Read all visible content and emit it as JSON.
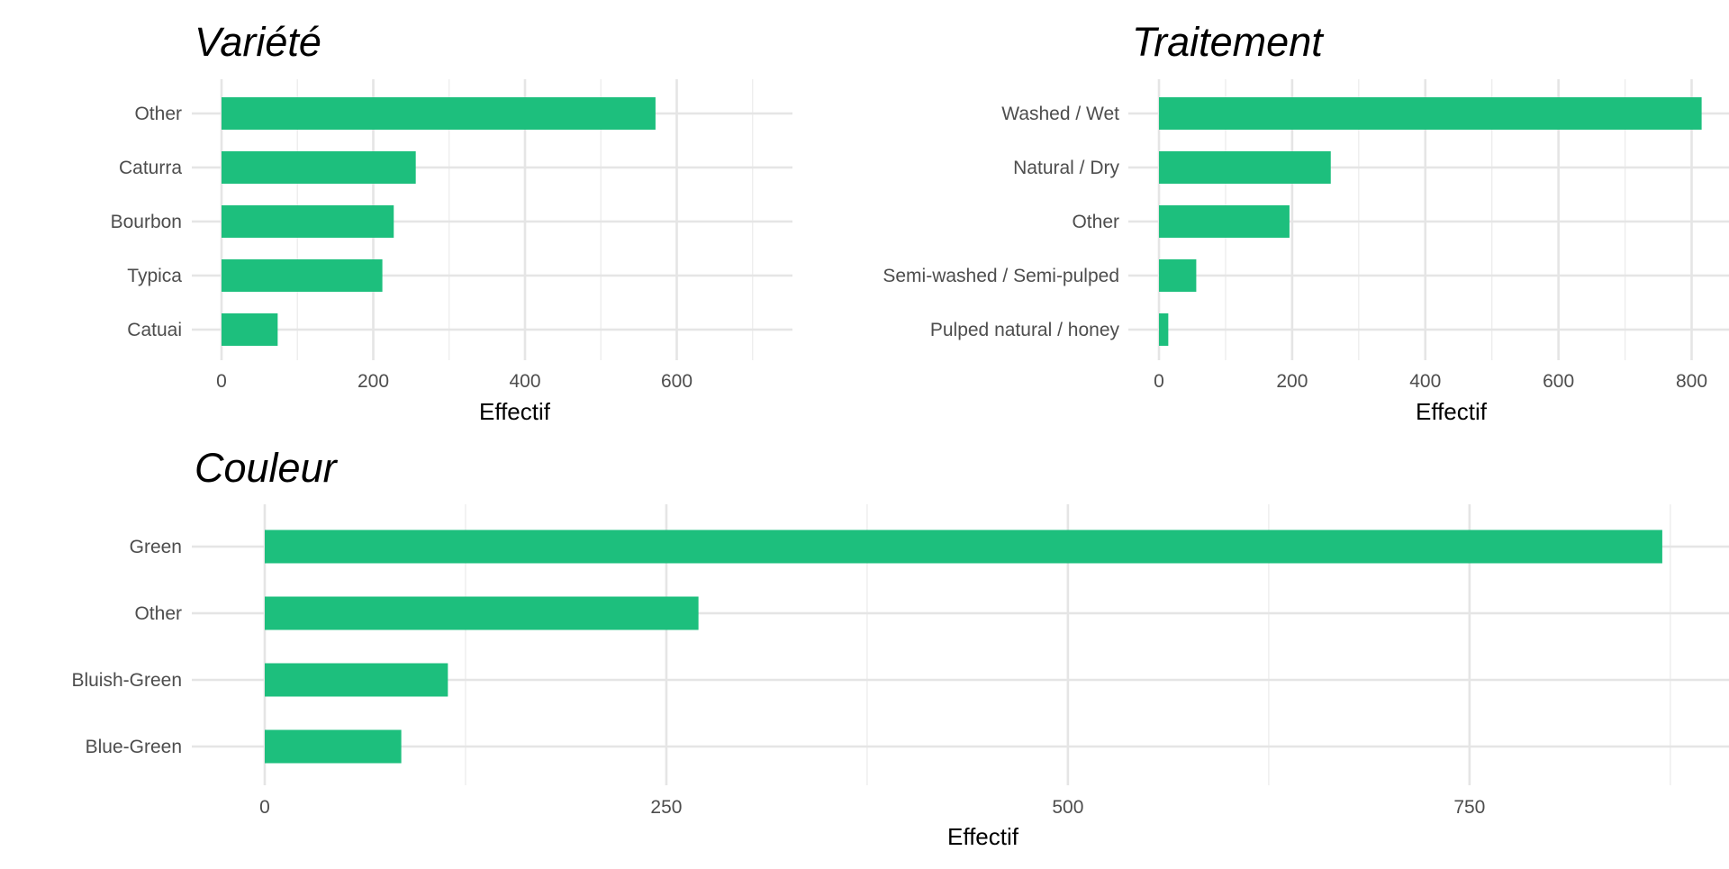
{
  "chart_data": [
    {
      "type": "bar",
      "orientation": "horizontal",
      "title": "Variété",
      "xlabel": "Effectif",
      "categories": [
        "Other",
        "Caturra",
        "Bourbon",
        "Typica",
        "Catuai"
      ],
      "values": [
        572,
        256,
        227,
        212,
        74
      ],
      "xlim": [
        0,
        600
      ],
      "xticks": [
        0,
        200,
        400,
        600
      ],
      "xtick_labels": [
        "0",
        "200",
        "400",
        "600"
      ],
      "bar_color": "#1DBF7D",
      "grid": true
    },
    {
      "type": "bar",
      "orientation": "horizontal",
      "title": "Traitement",
      "xlabel": "Effectif",
      "categories": [
        "Washed / Wet",
        "Natural / Dry",
        "Other",
        "Semi-washed / Semi-pulped",
        "Pulped natural / honey"
      ],
      "values": [
        815,
        258,
        196,
        56,
        14
      ],
      "xlim": [
        0,
        800
      ],
      "xticks": [
        0,
        200,
        400,
        600,
        800
      ],
      "xtick_labels": [
        "0",
        "200",
        "400",
        "600",
        "800"
      ],
      "bar_color": "#1DBF7D",
      "grid": true
    },
    {
      "type": "bar",
      "orientation": "horizontal",
      "title": "Couleur",
      "xlabel": "Effectif",
      "categories": [
        "Green",
        "Other",
        "Bluish-Green",
        "Blue-Green"
      ],
      "values": [
        870,
        270,
        114,
        85
      ],
      "xlim": [
        0,
        750
      ],
      "xticks": [
        0,
        250,
        500,
        750
      ],
      "xtick_labels": [
        "0",
        "250",
        "500",
        "750"
      ],
      "bar_color": "#1DBF7D",
      "grid": true
    }
  ]
}
